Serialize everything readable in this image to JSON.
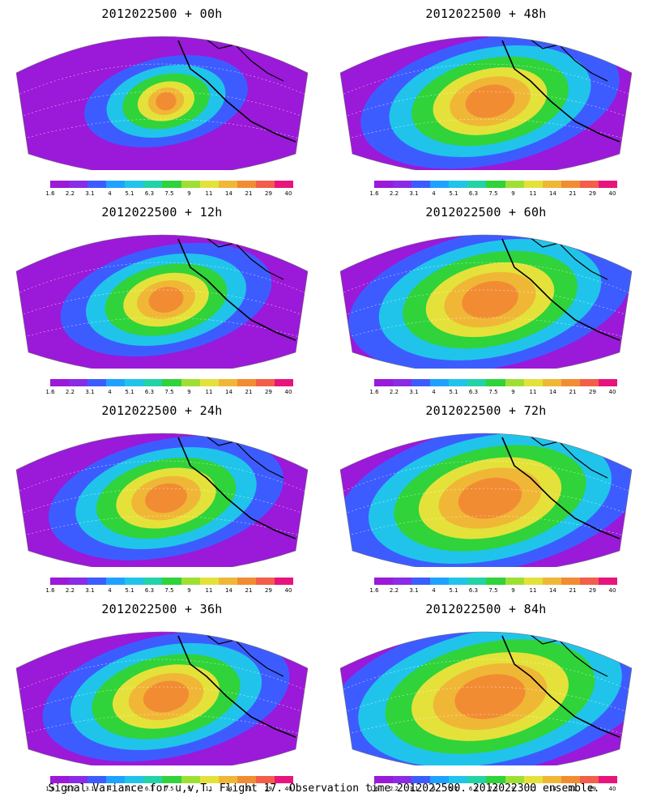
{
  "panels": [
    {
      "title": "2012022500 + 00h"
    },
    {
      "title": "2012022500 + 48h"
    },
    {
      "title": "2012022500 + 12h"
    },
    {
      "title": "2012022500 + 60h"
    },
    {
      "title": "2012022500 + 24h"
    },
    {
      "title": "2012022500 + 72h"
    },
    {
      "title": "2012022500 + 36h"
    },
    {
      "title": "2012022500 + 84h"
    }
  ],
  "colorbar": {
    "labels": [
      "1.6",
      "2.2",
      "3.1",
      "4",
      "5.1",
      "6.3",
      "7.5",
      "9",
      "11",
      "14",
      "21",
      "29",
      "40"
    ],
    "colors": [
      "#9b19d8",
      "#8a2be6",
      "#3d5cff",
      "#1fa2ff",
      "#20c4ea",
      "#22d3a8",
      "#30d33a",
      "#9fdf34",
      "#e4e23a",
      "#f0b737",
      "#f28c33",
      "#f25e49",
      "#e8147d"
    ]
  },
  "caption": "Signal Variance for u,v,T. Flight 17. Observation time 2012022500. 2012022300 ensemble."
}
